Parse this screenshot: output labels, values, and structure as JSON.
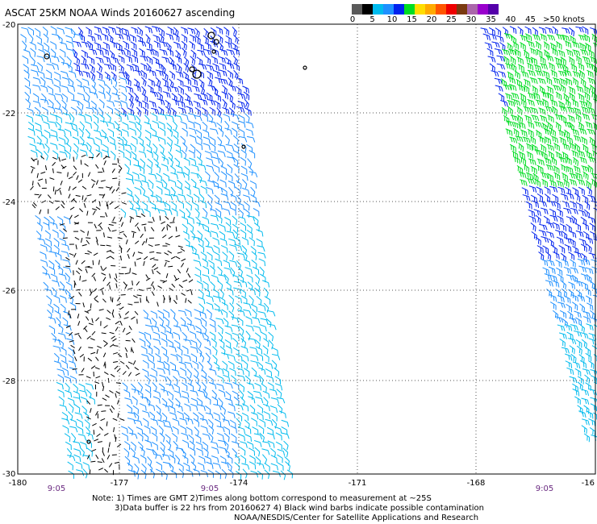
{
  "header": {
    "title": "ASCAT 25KM NOAA Winds 20160627 ascending"
  },
  "legend": {
    "colors": [
      "#5a5a5a",
      "#000000",
      "#00bbee",
      "#1e90ff",
      "#0022ee",
      "#00dd22",
      "#ffdd00",
      "#ffaa00",
      "#ff5500",
      "#ee0000",
      "#7a3a10",
      "#aa66aa",
      "#9900cc",
      "#5500aa"
    ],
    "labels": [
      "0",
      "5",
      "10",
      "15",
      "20",
      "25",
      "30",
      "35",
      "40",
      "45",
      ">50 knots"
    ]
  },
  "axes": {
    "lat_labels": [
      "-20",
      "-22",
      "-24",
      "-26",
      "-28",
      "-30"
    ],
    "lon_labels": [
      "-180",
      "-177",
      "-174",
      "-171",
      "-168",
      "-16"
    ]
  },
  "pass_times": [
    "9:05",
    "9:05",
    "9:05"
  ],
  "notes": {
    "line1": "Note: 1) Times are GMT 2)Times along bottom correspond to measurement at ~25S",
    "line2": "3)Data buffer is 22 hrs from 20160627 4) Black wind barbs indicate possible contamination",
    "line3": "NOAA/NESDIS/Center for Satellite Applications and Research"
  }
}
